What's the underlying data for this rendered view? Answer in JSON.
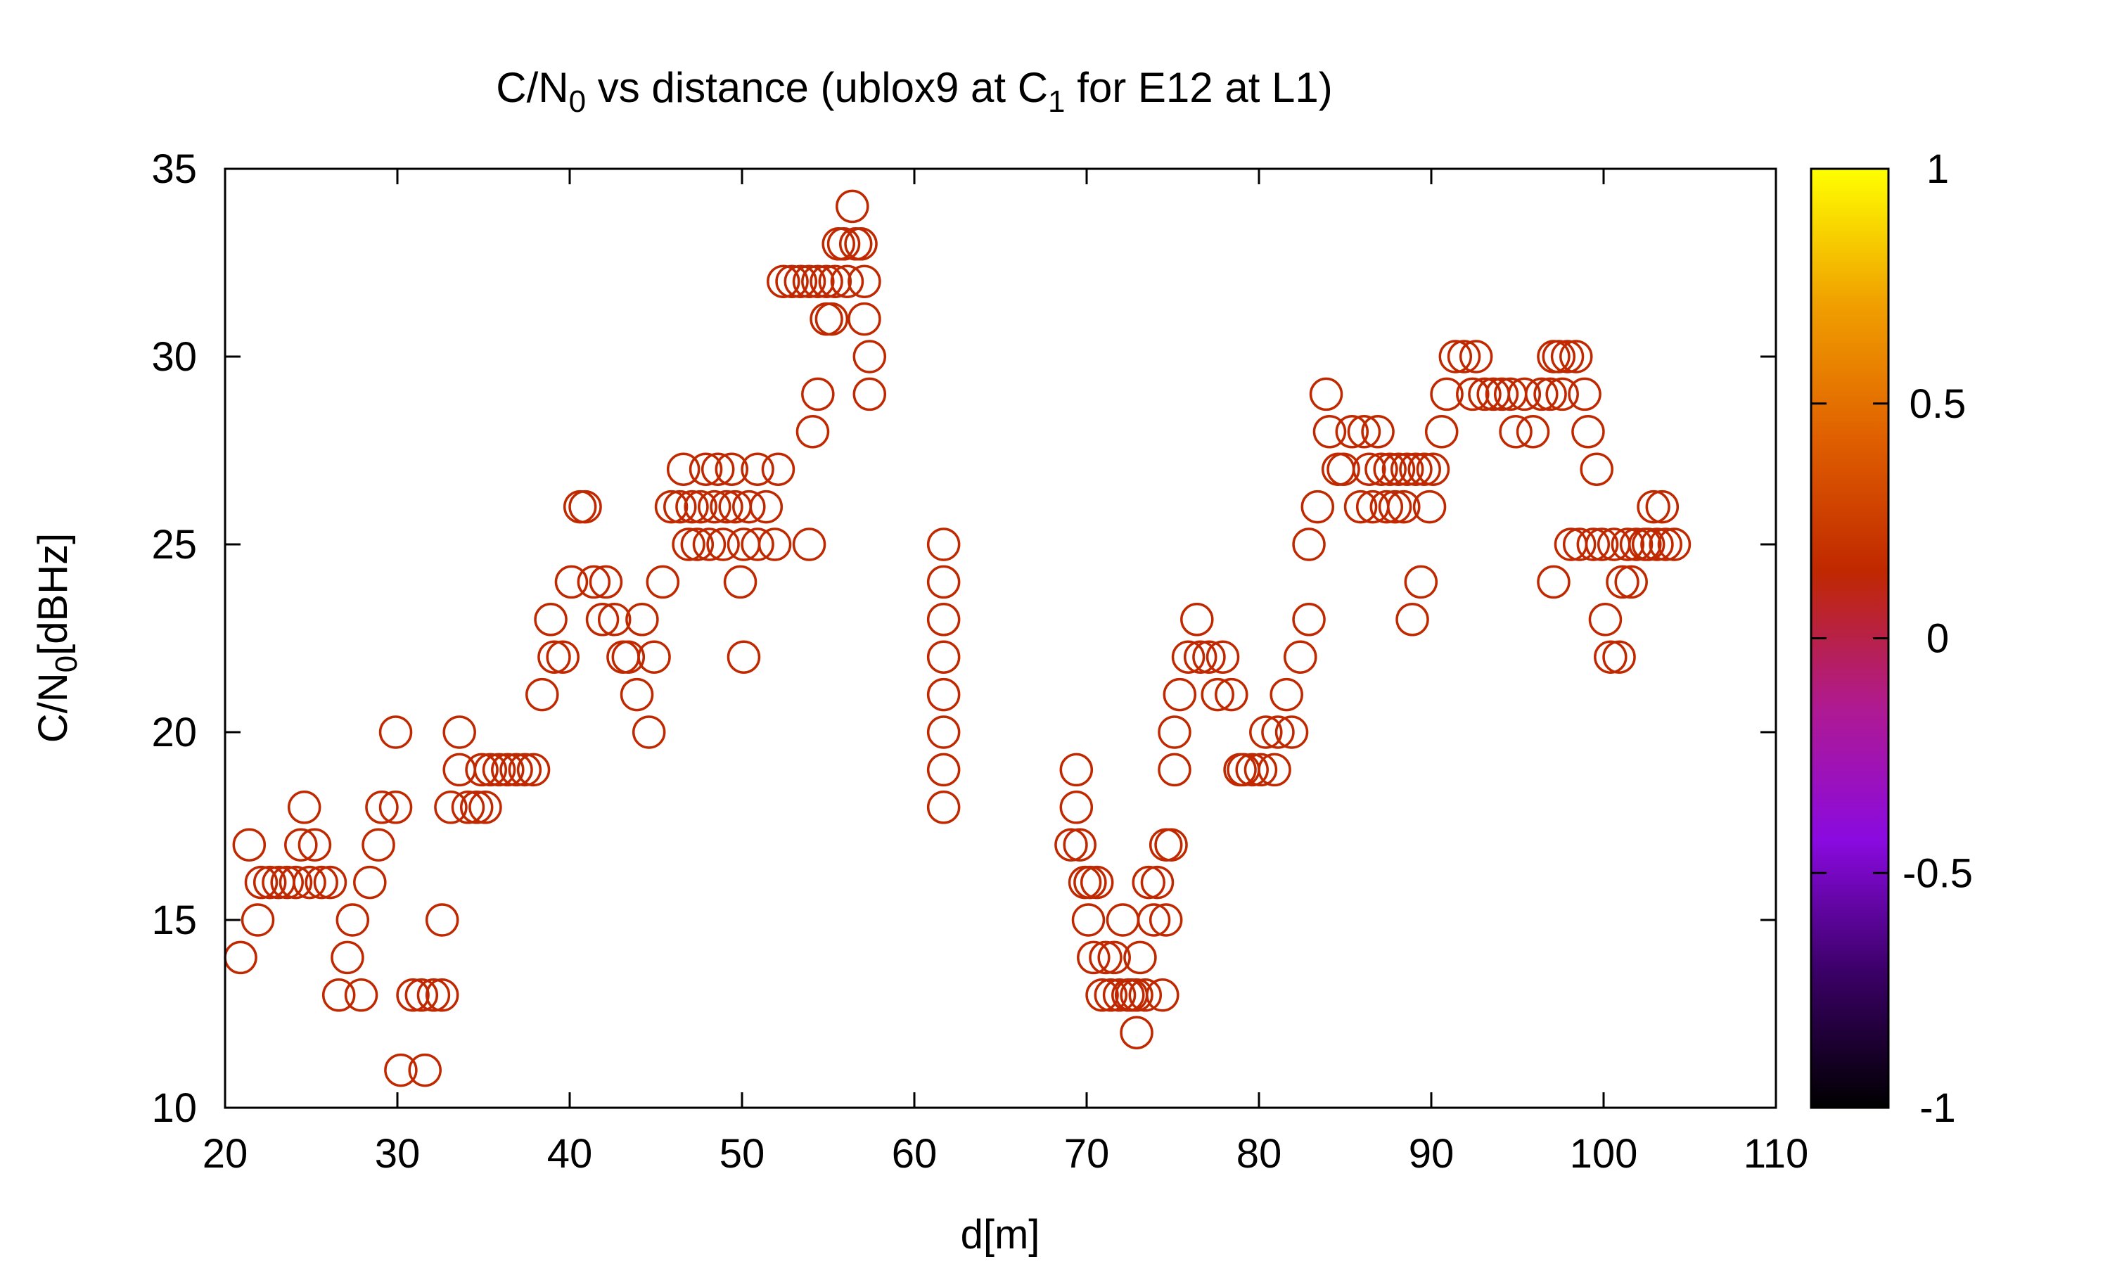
{
  "chart_data": {
    "type": "scatter",
    "title": {
      "pre": "C/N",
      "sub1": "0",
      "mid": " vs distance (ublox9 at C",
      "sub2": "1",
      "post": " for E12 at L1)"
    },
    "xlabel": "d[m]",
    "ylabel": {
      "pre": "C/N",
      "sub": "0",
      "post": "[dBHz]"
    },
    "xlim": [
      20,
      110
    ],
    "ylim": [
      10,
      35
    ],
    "xticks": [
      "20",
      "30",
      "40",
      "50",
      "60",
      "70",
      "80",
      "90",
      "100",
      "110"
    ],
    "yticks": [
      "10",
      "15",
      "20",
      "25",
      "30",
      "35"
    ],
    "colorbar": {
      "range": [
        -1,
        1
      ],
      "ticks": [
        "1",
        "0.5",
        "0",
        "-0.5",
        "-1"
      ],
      "stops": [
        "#000000",
        "#3a0066",
        "#8a0ae0",
        "#b01a90",
        "#c02800",
        "#e06000",
        "#f0a000",
        "#ffff00"
      ]
    },
    "marker": {
      "shape": "open-circle",
      "color": "#c02800"
    },
    "points": [
      [
        20.9,
        14
      ],
      [
        21.4,
        17
      ],
      [
        21.9,
        15
      ],
      [
        22.1,
        16
      ],
      [
        22.6,
        16
      ],
      [
        23.1,
        16
      ],
      [
        23.6,
        16
      ],
      [
        24.1,
        16
      ],
      [
        24.4,
        17
      ],
      [
        24.6,
        18
      ],
      [
        24.9,
        16
      ],
      [
        25.2,
        17
      ],
      [
        25.6,
        16
      ],
      [
        26.1,
        16
      ],
      [
        26.6,
        13
      ],
      [
        27.1,
        14
      ],
      [
        27.4,
        15
      ],
      [
        27.9,
        13
      ],
      [
        28.4,
        16
      ],
      [
        28.9,
        17
      ],
      [
        29.1,
        18
      ],
      [
        29.9,
        20
      ],
      [
        29.9,
        18
      ],
      [
        30.2,
        11
      ],
      [
        30.9,
        13
      ],
      [
        31.4,
        13
      ],
      [
        31.6,
        11
      ],
      [
        32.1,
        13
      ],
      [
        32.6,
        13
      ],
      [
        32.6,
        15
      ],
      [
        33.1,
        18
      ],
      [
        33.6,
        20
      ],
      [
        33.6,
        19
      ],
      [
        34.1,
        18
      ],
      [
        34.6,
        18
      ],
      [
        34.9,
        19
      ],
      [
        35.1,
        18
      ],
      [
        35.4,
        19
      ],
      [
        35.9,
        19
      ],
      [
        36.4,
        19
      ],
      [
        36.9,
        19
      ],
      [
        37.4,
        19
      ],
      [
        37.9,
        19
      ],
      [
        38.4,
        21
      ],
      [
        38.9,
        23
      ],
      [
        39.1,
        22
      ],
      [
        39.6,
        22
      ],
      [
        40.1,
        24
      ],
      [
        40.6,
        26
      ],
      [
        40.9,
        26
      ],
      [
        41.4,
        24
      ],
      [
        41.9,
        23
      ],
      [
        42.1,
        24
      ],
      [
        42.6,
        23
      ],
      [
        43.1,
        22
      ],
      [
        43.4,
        22
      ],
      [
        43.9,
        21
      ],
      [
        44.2,
        23
      ],
      [
        44.6,
        20
      ],
      [
        44.9,
        22
      ],
      [
        45.4,
        24
      ],
      [
        45.9,
        26
      ],
      [
        46.4,
        26
      ],
      [
        46.6,
        27
      ],
      [
        46.9,
        25
      ],
      [
        47.1,
        26
      ],
      [
        47.4,
        25
      ],
      [
        47.6,
        26
      ],
      [
        47.9,
        27
      ],
      [
        48.1,
        25
      ],
      [
        48.4,
        26
      ],
      [
        48.6,
        27
      ],
      [
        48.9,
        25
      ],
      [
        49.1,
        26
      ],
      [
        49.4,
        27
      ],
      [
        49.6,
        26
      ],
      [
        49.9,
        24
      ],
      [
        50.1,
        25
      ],
      [
        50.1,
        22
      ],
      [
        50.4,
        26
      ],
      [
        50.9,
        25
      ],
      [
        50.9,
        27
      ],
      [
        51.4,
        26
      ],
      [
        51.9,
        25
      ],
      [
        52.1,
        27
      ],
      [
        52.4,
        32
      ],
      [
        52.9,
        32
      ],
      [
        53.4,
        32
      ],
      [
        53.9,
        25
      ],
      [
        53.9,
        32
      ],
      [
        54.1,
        28
      ],
      [
        54.4,
        29
      ],
      [
        54.4,
        32
      ],
      [
        54.9,
        31
      ],
      [
        54.9,
        32
      ],
      [
        55.2,
        31
      ],
      [
        55.4,
        32
      ],
      [
        55.6,
        33
      ],
      [
        55.9,
        33
      ],
      [
        56.1,
        32
      ],
      [
        56.4,
        34
      ],
      [
        56.6,
        33
      ],
      [
        56.9,
        33
      ],
      [
        57.1,
        32
      ],
      [
        57.1,
        31
      ],
      [
        57.4,
        30
      ],
      [
        57.4,
        29
      ],
      [
        61.7,
        25
      ],
      [
        61.7,
        24
      ],
      [
        61.7,
        23
      ],
      [
        61.7,
        22
      ],
      [
        61.7,
        21
      ],
      [
        61.7,
        20
      ],
      [
        61.7,
        19
      ],
      [
        61.7,
        18
      ],
      [
        69.1,
        17
      ],
      [
        69.4,
        19
      ],
      [
        69.4,
        18
      ],
      [
        69.6,
        17
      ],
      [
        69.9,
        16
      ],
      [
        70.1,
        15
      ],
      [
        70.2,
        16
      ],
      [
        70.4,
        14
      ],
      [
        70.6,
        16
      ],
      [
        70.9,
        13
      ],
      [
        71.1,
        14
      ],
      [
        71.4,
        13
      ],
      [
        71.6,
        14
      ],
      [
        71.9,
        13
      ],
      [
        72.1,
        15
      ],
      [
        72.4,
        13
      ],
      [
        72.6,
        13
      ],
      [
        72.9,
        12
      ],
      [
        72.9,
        13
      ],
      [
        73.1,
        14
      ],
      [
        73.4,
        13
      ],
      [
        73.6,
        16
      ],
      [
        73.9,
        15
      ],
      [
        74.1,
        16
      ],
      [
        74.4,
        13
      ],
      [
        74.6,
        15
      ],
      [
        74.6,
        17
      ],
      [
        74.9,
        17
      ],
      [
        75.1,
        19
      ],
      [
        75.1,
        20
      ],
      [
        75.4,
        21
      ],
      [
        75.9,
        22
      ],
      [
        76.4,
        23
      ],
      [
        76.6,
        22
      ],
      [
        77.1,
        22
      ],
      [
        77.6,
        21
      ],
      [
        77.9,
        22
      ],
      [
        78.4,
        21
      ],
      [
        78.9,
        19
      ],
      [
        79.1,
        19
      ],
      [
        79.6,
        19
      ],
      [
        80.1,
        19
      ],
      [
        80.4,
        20
      ],
      [
        80.9,
        19
      ],
      [
        81.1,
        20
      ],
      [
        81.6,
        21
      ],
      [
        81.9,
        20
      ],
      [
        82.4,
        22
      ],
      [
        82.9,
        23
      ],
      [
        82.9,
        25
      ],
      [
        83.4,
        26
      ],
      [
        83.9,
        29
      ],
      [
        84.1,
        28
      ],
      [
        84.6,
        27
      ],
      [
        84.9,
        27
      ],
      [
        85.4,
        28
      ],
      [
        85.9,
        26
      ],
      [
        86.1,
        28
      ],
      [
        86.4,
        27
      ],
      [
        86.6,
        26
      ],
      [
        86.9,
        28
      ],
      [
        87.1,
        27
      ],
      [
        87.4,
        26
      ],
      [
        87.6,
        27
      ],
      [
        87.9,
        26
      ],
      [
        88.1,
        27
      ],
      [
        88.4,
        26
      ],
      [
        88.6,
        27
      ],
      [
        88.9,
        23
      ],
      [
        89.1,
        27
      ],
      [
        89.4,
        24
      ],
      [
        89.6,
        27
      ],
      [
        89.9,
        26
      ],
      [
        90.1,
        27
      ],
      [
        90.6,
        28
      ],
      [
        90.9,
        29
      ],
      [
        91.4,
        30
      ],
      [
        91.9,
        30
      ],
      [
        92.4,
        29
      ],
      [
        92.6,
        30
      ],
      [
        93.1,
        29
      ],
      [
        93.6,
        29
      ],
      [
        94.1,
        29
      ],
      [
        94.6,
        29
      ],
      [
        94.9,
        28
      ],
      [
        95.4,
        29
      ],
      [
        95.9,
        28
      ],
      [
        96.4,
        29
      ],
      [
        96.9,
        29
      ],
      [
        97.1,
        30
      ],
      [
        97.1,
        24
      ],
      [
        97.4,
        30
      ],
      [
        97.6,
        29
      ],
      [
        97.9,
        30
      ],
      [
        98.1,
        25
      ],
      [
        98.4,
        30
      ],
      [
        98.6,
        25
      ],
      [
        98.9,
        29
      ],
      [
        99.1,
        28
      ],
      [
        99.4,
        25
      ],
      [
        99.6,
        27
      ],
      [
        99.9,
        25
      ],
      [
        100.1,
        23
      ],
      [
        100.4,
        22
      ],
      [
        100.6,
        25
      ],
      [
        100.9,
        22
      ],
      [
        101.1,
        24
      ],
      [
        101.4,
        25
      ],
      [
        101.6,
        24
      ],
      [
        101.9,
        25
      ],
      [
        102.4,
        25
      ],
      [
        102.6,
        25
      ],
      [
        102.9,
        26
      ],
      [
        103.1,
        25
      ],
      [
        103.4,
        26
      ],
      [
        103.6,
        25
      ],
      [
        104.1,
        25
      ]
    ]
  }
}
